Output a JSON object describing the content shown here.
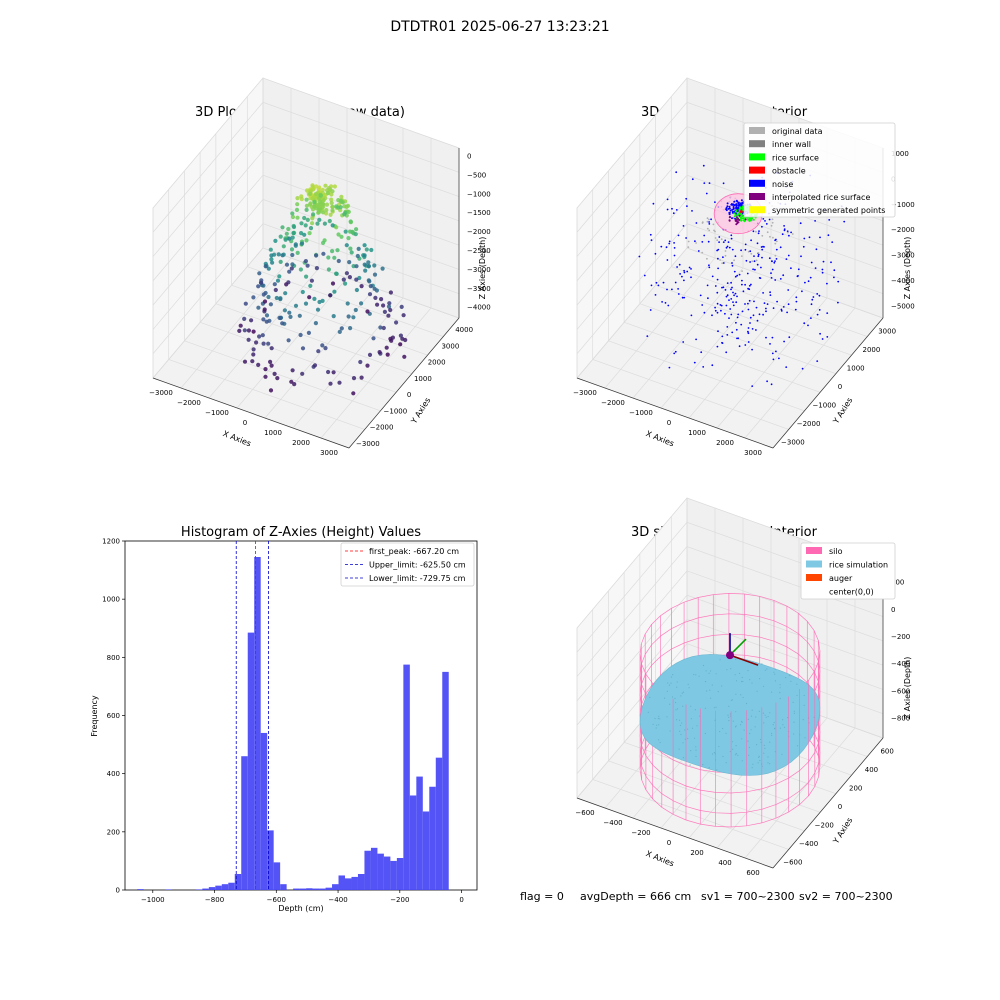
{
  "figure": {
    "title": "DTDTR01 2025-06-27 13:23:21",
    "footer": {
      "flag": "flag = 0",
      "avg_depth": "avgDepth = 666 cm",
      "sv1": "sv1 = 700~2300",
      "sv2": "sv2 = 700~2300"
    }
  },
  "colors": {
    "hist_bar": "#4b4bf5",
    "first_peak": "#ff0000",
    "limit_line": "#0000cc",
    "silo": "#ff69b4",
    "rice": "#7ec8e3",
    "auger": "#ff4500",
    "grid": "#dcdcdc",
    "pane": "#f2f2f2"
  },
  "chart_data": [
    {
      "type": "scatter",
      "title": "3D Plot of Silo Interior(row data)",
      "xlabel": "X Axies",
      "ylabel": "Y Axies",
      "zlabel": "Z Axies (Depth)",
      "x_ticks": [
        "−3000",
        "−2000",
        "−1000",
        "0",
        "1000",
        "2000",
        "3000"
      ],
      "y_ticks": [
        "−3000",
        "−2000",
        "−1000",
        "0",
        "1000",
        "2000",
        "3000",
        "4000"
      ],
      "z_ticks": [
        "0",
        "−500",
        "−1000",
        "−1500",
        "−2000",
        "−2500",
        "−3000",
        "−3500",
        "−4000"
      ],
      "xlim": [
        -3500,
        3500
      ],
      "ylim": [
        -3500,
        4500
      ],
      "zlim": [
        -4300,
        200
      ],
      "colormap": "viridis by depth",
      "grid": true
    },
    {
      "type": "scatter",
      "title": "3D classify of Silo Interior",
      "xlabel": "X Axies",
      "ylabel": "Y Axies",
      "zlabel": "Z Axies (Depth)",
      "x_ticks": [
        "−3000",
        "−2000",
        "−1000",
        "0",
        "1000",
        "2000",
        "3000"
      ],
      "y_ticks": [
        "−3000",
        "−2000",
        "−1000",
        "0",
        "1000",
        "2000",
        "3000"
      ],
      "z_ticks": [
        "1000",
        "0",
        "−1000",
        "−2000",
        "−3000",
        "−4000",
        "−5000"
      ],
      "xlim": [
        -3500,
        3500
      ],
      "ylim": [
        -3500,
        3500
      ],
      "zlim": [
        -5500,
        1200
      ],
      "legend_position": "top-right",
      "legend": [
        {
          "label": "original data",
          "color": "#b0b0b0"
        },
        {
          "label": "inner wall",
          "color": "#808080"
        },
        {
          "label": "rice surface",
          "color": "#00ff00"
        },
        {
          "label": "obstacle",
          "color": "#ff0000"
        },
        {
          "label": "noise",
          "color": "#0000ff"
        },
        {
          "label": "interpolated rice surface",
          "color": "#800080"
        },
        {
          "label": "symmetric generated points",
          "color": "#ffff00"
        }
      ],
      "grid": true
    },
    {
      "type": "bar",
      "title": "Histogram of Z-Axies (Height) Values",
      "xlabel": "Depth (cm)",
      "ylabel": "Frequency",
      "xlim": [
        -1090,
        50
      ],
      "ylim": [
        0,
        1200
      ],
      "x_ticks": [
        -1000,
        -800,
        -600,
        -400,
        -200,
        0
      ],
      "x_tick_labels": [
        "−1000",
        "−800",
        "−600",
        "−400",
        "−200",
        "0"
      ],
      "y_ticks": [
        0,
        200,
        400,
        600,
        800,
        1000,
        1200
      ],
      "bin_width": 21,
      "bins": [
        {
          "x": -1040,
          "v": 3
        },
        {
          "x": -950,
          "v": 2
        },
        {
          "x": -850,
          "v": 2
        },
        {
          "x": -829,
          "v": 5
        },
        {
          "x": -808,
          "v": 10
        },
        {
          "x": -787,
          "v": 15
        },
        {
          "x": -766,
          "v": 20
        },
        {
          "x": -745,
          "v": 25
        },
        {
          "x": -724,
          "v": 55
        },
        {
          "x": -703,
          "v": 460
        },
        {
          "x": -682,
          "v": 885
        },
        {
          "x": -661,
          "v": 1145
        },
        {
          "x": -640,
          "v": 540
        },
        {
          "x": -619,
          "v": 205
        },
        {
          "x": -598,
          "v": 95
        },
        {
          "x": -577,
          "v": 20
        },
        {
          "x": -535,
          "v": 5
        },
        {
          "x": -514,
          "v": 5
        },
        {
          "x": -493,
          "v": 6
        },
        {
          "x": -472,
          "v": 5
        },
        {
          "x": -451,
          "v": 5
        },
        {
          "x": -430,
          "v": 8
        },
        {
          "x": -409,
          "v": 20
        },
        {
          "x": -388,
          "v": 50
        },
        {
          "x": -367,
          "v": 40
        },
        {
          "x": -346,
          "v": 45
        },
        {
          "x": -325,
          "v": 55
        },
        {
          "x": -304,
          "v": 135
        },
        {
          "x": -283,
          "v": 145
        },
        {
          "x": -262,
          "v": 125
        },
        {
          "x": -241,
          "v": 115
        },
        {
          "x": -220,
          "v": 100
        },
        {
          "x": -199,
          "v": 110
        },
        {
          "x": -178,
          "v": 775
        },
        {
          "x": -157,
          "v": 325
        },
        {
          "x": -136,
          "v": 390
        },
        {
          "x": -115,
          "v": 270
        },
        {
          "x": -94,
          "v": 355
        },
        {
          "x": -73,
          "v": 455
        },
        {
          "x": -52,
          "v": 750
        }
      ],
      "lines": [
        {
          "label": "first_peak: -667.20 cm",
          "x": -667.2,
          "color": "#ff0000"
        },
        {
          "label": "Upper_limit: -625.50 cm",
          "x": -625.5,
          "color": "#0000cc"
        },
        {
          "label": "Lower_limit: -729.75 cm",
          "x": -729.75,
          "color": "#0000cc"
        }
      ],
      "legend_position": "top-right"
    },
    {
      "type": "scatter",
      "title": "3D simulation of Silo Interior",
      "xlabel": "X Axies",
      "ylabel": "Y Axies",
      "zlabel": "Z Axies (Depth)",
      "x_ticks": [
        "−600",
        "−400",
        "−200",
        "0",
        "200",
        "400",
        "600"
      ],
      "y_ticks": [
        "−600",
        "−400",
        "−200",
        "0",
        "200",
        "400",
        "600"
      ],
      "z_ticks": [
        "200",
        "0",
        "−200",
        "−400",
        "−600",
        "−800"
      ],
      "xlim": [
        -700,
        700
      ],
      "ylim": [
        -700,
        700
      ],
      "zlim": [
        -950,
        300
      ],
      "legend_position": "top-right",
      "legend": [
        {
          "label": "silo",
          "color": "#ff69b4"
        },
        {
          "label": "rice simulation",
          "color": "#7ec8e3"
        },
        {
          "label": "auger",
          "color": "#ff4500"
        },
        {
          "label": "center(0,0)",
          "color": ""
        }
      ],
      "grid": true
    }
  ]
}
